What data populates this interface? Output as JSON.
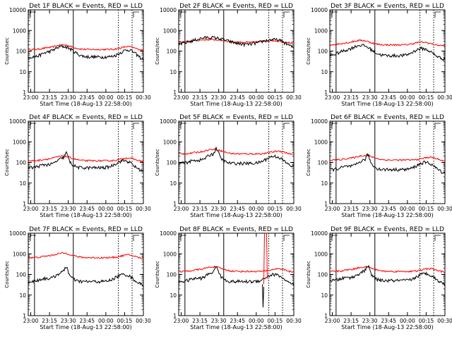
{
  "panels": [
    {
      "title": "Det 1F BLACK = Events, RED = LLD",
      "black_base": 52,
      "red_base": 120,
      "peak": "mid",
      "spike": false
    },
    {
      "title": "Det 2F BLACK = Events, RED = LLD",
      "black_base": 200,
      "red_base": 260,
      "peak": "wide",
      "spike": false
    },
    {
      "title": "Det 3F BLACK = Events, RED = LLD",
      "black_base": 60,
      "red_base": 200,
      "peak": "early",
      "spike": false
    },
    {
      "title": "Det 4F BLACK = Events, RED = LLD",
      "black_base": 55,
      "red_base": 120,
      "peak": "spiky",
      "spike": false
    },
    {
      "title": "Det 5F BLACK = Events, RED = LLD",
      "black_base": 90,
      "red_base": 260,
      "peak": "spiky",
      "spike": false
    },
    {
      "title": "Det 6F BLACK = Events, RED = LLD",
      "black_base": 45,
      "red_base": 130,
      "peak": "spiky",
      "spike": false
    },
    {
      "title": "Det 7F BLACK = Events, RED = LLD",
      "black_base": 45,
      "red_base": 650,
      "peak": "spiky",
      "spike": false
    },
    {
      "title": "Det 8F BLACK = Events, RED = LLD",
      "black_base": 45,
      "red_base": 140,
      "peak": "spiky",
      "spike": true
    },
    {
      "title": "Det 9F BLACK = Events, RED = LLD",
      "black_base": 50,
      "red_base": 140,
      "peak": "spiky",
      "spike": false
    }
  ],
  "axes": {
    "ylabel": "Counts/sec",
    "xlabel": "Start Time (18-Aug-13 22:58:00)",
    "yticks": [
      "1",
      "10",
      "100",
      "1000",
      "10000"
    ],
    "xticks": [
      "23:00",
      "23:15",
      "23:30",
      "23:45",
      "00:00",
      "00:15",
      "00:30"
    ],
    "corner_mark": "F"
  },
  "chart_data": {
    "type": "line",
    "title": "",
    "xlabel": "Start Time (18-Aug-13 22:58:00)",
    "ylabel": "Counts/sec",
    "scale": "log",
    "ylim": [
      1,
      10000
    ],
    "x_range": [
      "22:58",
      "00:30"
    ],
    "series_colors": {
      "black": "#000000",
      "red": "#ff0000"
    },
    "legend": "BLACK = Events, RED = LLD",
    "detectors": [
      "1F",
      "2F",
      "3F",
      "4F",
      "5F",
      "6F",
      "7F",
      "8F",
      "9F"
    ]
  }
}
